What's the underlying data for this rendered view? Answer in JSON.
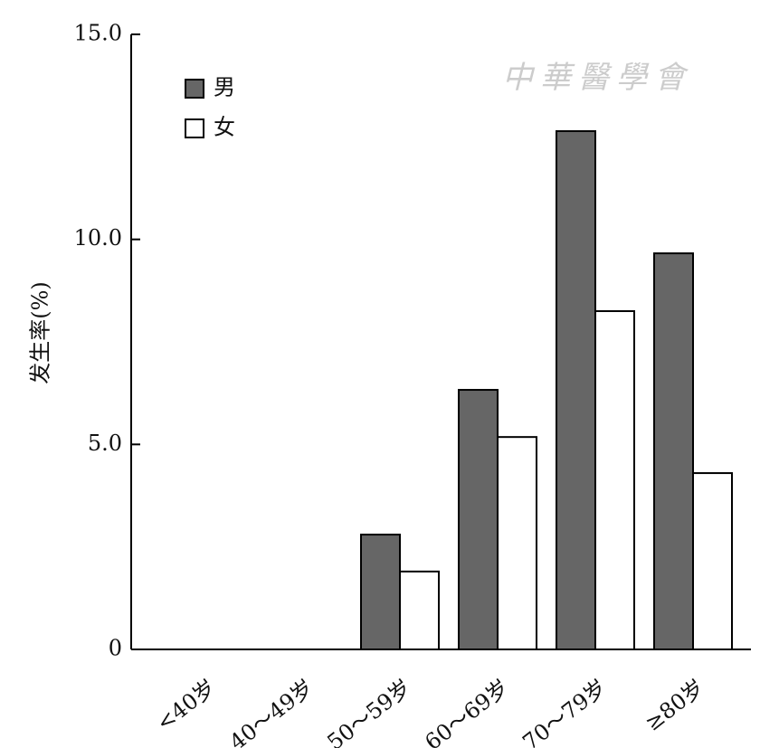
{
  "chart_data": {
    "type": "bar",
    "watermark": "中華醫學會",
    "y_label": "发生率(%)",
    "categories": [
      "<40岁",
      "40～49岁",
      "50～59岁",
      "60～69岁",
      "70～79岁",
      "≥80岁"
    ],
    "series": [
      {
        "name": "男",
        "color": "#666666",
        "values": [
          0,
          0,
          2.8,
          6.33,
          12.64,
          9.66
        ]
      },
      {
        "name": "女",
        "color": "#ffffff",
        "values": [
          0,
          0,
          1.9,
          5.18,
          8.25,
          4.3
        ]
      }
    ],
    "ylim": [
      0,
      15
    ],
    "yticks": [
      0,
      {
        "value": 5,
        "label": "5.0"
      },
      {
        "value": 10,
        "label": "10.0"
      },
      {
        "value": 15,
        "label": "15.0"
      }
    ],
    "legend": "upper-left"
  }
}
